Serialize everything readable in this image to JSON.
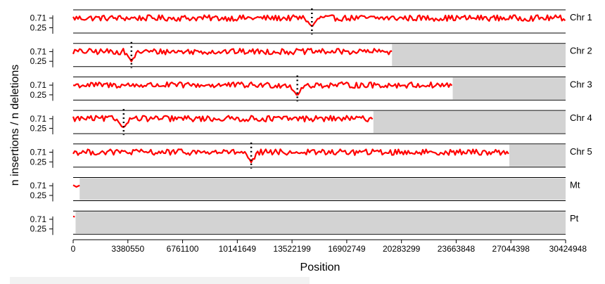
{
  "chart_data": {
    "type": "line",
    "xlabel": "Position",
    "ylabel": "n insertions / n deletions",
    "y_ticks": [
      "0.71",
      "0.25"
    ],
    "x_ticks": [
      0,
      3380550,
      6761100,
      10141649,
      13522199,
      16902749,
      20283299,
      23663848,
      27044398,
      30424948
    ],
    "xlim": [
      0,
      30424948
    ],
    "ylim": [
      0.0,
      1.1
    ],
    "line_color": "#ff0000",
    "marker_color": "#000000",
    "shade_color": "#d3d3d3",
    "panels": [
      {
        "name": "Chr 1",
        "length": 30424948,
        "marker": 14750000,
        "dip": [
          14750000,
          0.3
        ]
      },
      {
        "name": "Chr 2",
        "length": 19700000,
        "marker": 3600000,
        "dip": [
          3600000,
          0.28
        ]
      },
      {
        "name": "Chr 3",
        "length": 23450000,
        "marker": 13850000,
        "dip": [
          13850000,
          0.22
        ]
      },
      {
        "name": "Chr 4",
        "length": 18550000,
        "marker": 3120000,
        "dip": [
          3120000,
          0.3
        ]
      },
      {
        "name": "Chr 5",
        "length": 26950000,
        "marker": 11000000,
        "dip": [
          11000000,
          0.22
        ]
      },
      {
        "name": "Mt",
        "length": 400000,
        "marker": null,
        "dip": null
      },
      {
        "name": "Pt",
        "length": 150000,
        "marker": null,
        "dip": null
      }
    ]
  }
}
